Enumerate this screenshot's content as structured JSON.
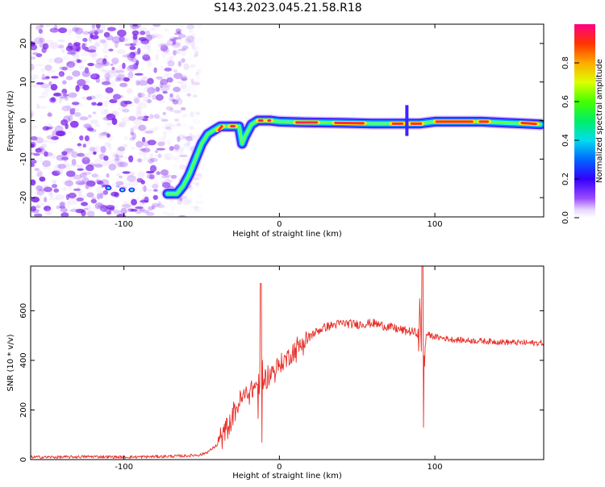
{
  "title": "S143.2023.045.21.58.R18",
  "colors": {
    "series": "#e8302a",
    "ridge_low": "#3f23ff",
    "ridge_mid": "#25ffd6",
    "ridge_high": "#ff2a3a",
    "noise": "#9b4cf0"
  },
  "colorbar": {
    "label": "Normalized spectral amplitude",
    "ticks": [
      "0.0",
      "0.2",
      "0.4",
      "0.6",
      "0.8"
    ]
  },
  "chart_data": [
    {
      "type": "heatmap",
      "xlabel": "Height of straight line (km)",
      "ylabel": "Frequency (Hz)",
      "xlim": [
        -160,
        170
      ],
      "ylim": [
        -25,
        25
      ],
      "x_ticks": [
        "-100",
        "0",
        "100"
      ],
      "y_ticks": [
        "-20",
        "-10",
        "0",
        "10",
        "20"
      ],
      "ridge": {
        "x": [
          -72,
          -66,
          -62,
          -58,
          -54,
          -50,
          -46,
          -42,
          -38,
          -34,
          -30,
          -26,
          -24,
          -22,
          -18,
          -14,
          -10,
          -6,
          0,
          20,
          40,
          60,
          80,
          90,
          100,
          130,
          168
        ],
        "y": [
          -19,
          -19,
          -17,
          -14,
          -10,
          -6,
          -3.5,
          -2.5,
          -1.5,
          -1.5,
          -1.5,
          -1.5,
          -6,
          -4,
          -1,
          0,
          0,
          0,
          -0.3,
          -0.5,
          -0.6,
          -0.8,
          -0.8,
          -0.8,
          -0.3,
          -0.3,
          -1
        ]
      },
      "noise_region_x": [
        -160,
        -60
      ]
    },
    {
      "type": "line",
      "xlabel": "Height of straight line (km)",
      "ylabel": "SNR (10 * v/v)",
      "xlim": [
        -160,
        170
      ],
      "ylim": [
        0,
        780
      ],
      "x_ticks": [
        "-100",
        "0",
        "100"
      ],
      "y_ticks": [
        "0",
        "200",
        "400",
        "600"
      ],
      "x": [
        -160,
        -140,
        -120,
        -100,
        -80,
        -60,
        -50,
        -45,
        -40,
        -35,
        -30,
        -25,
        -20,
        -15,
        -12,
        -10,
        -5,
        0,
        5,
        10,
        15,
        20,
        25,
        30,
        40,
        50,
        60,
        70,
        80,
        85,
        90,
        95,
        100,
        110,
        120,
        130,
        140,
        150,
        160,
        170
      ],
      "y": [
        10,
        10,
        12,
        10,
        12,
        15,
        20,
        35,
        60,
        110,
        180,
        240,
        270,
        300,
        310,
        320,
        350,
        380,
        410,
        440,
        470,
        500,
        520,
        535,
        550,
        545,
        550,
        535,
        520,
        515,
        510,
        505,
        495,
        485,
        480,
        478,
        475,
        472,
        470,
        470
      ],
      "spikes": [
        {
          "x": -12,
          "peak": 710,
          "dip": 70
        },
        {
          "x": 92,
          "peak": 780,
          "dip": 130
        }
      ]
    }
  ]
}
